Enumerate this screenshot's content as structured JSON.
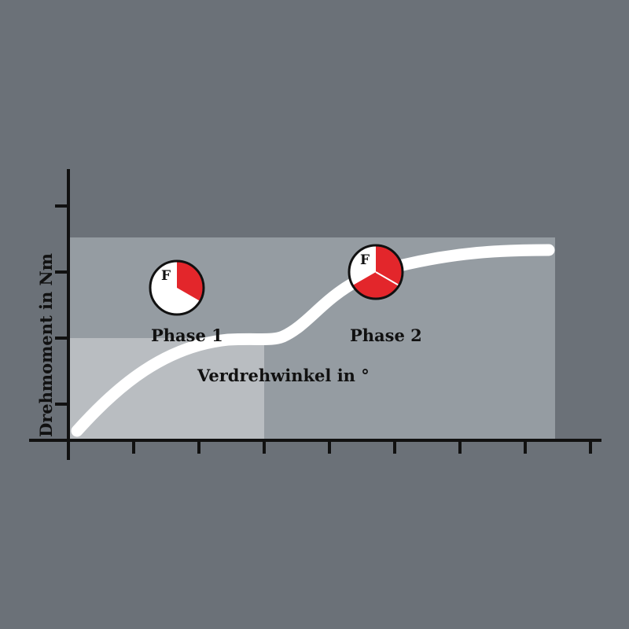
{
  "diagram": {
    "y_axis_label": "Drehmoment in Nm",
    "x_axis_label": "Verdrehwinkel in °",
    "phases": [
      {
        "label": "Phase 1",
        "icon_letter": "F",
        "fill_fraction": 0.333
      },
      {
        "label": "Phase 2",
        "icon_letter": "F",
        "fill_fraction": 0.667
      }
    ],
    "colors": {
      "background": "#6b7178",
      "zone_upper": "#959ca2",
      "zone_lower": "#b9bdc1",
      "curve": "#ffffff",
      "gauge_fill": "#e3262b",
      "axis": "#111111"
    }
  }
}
